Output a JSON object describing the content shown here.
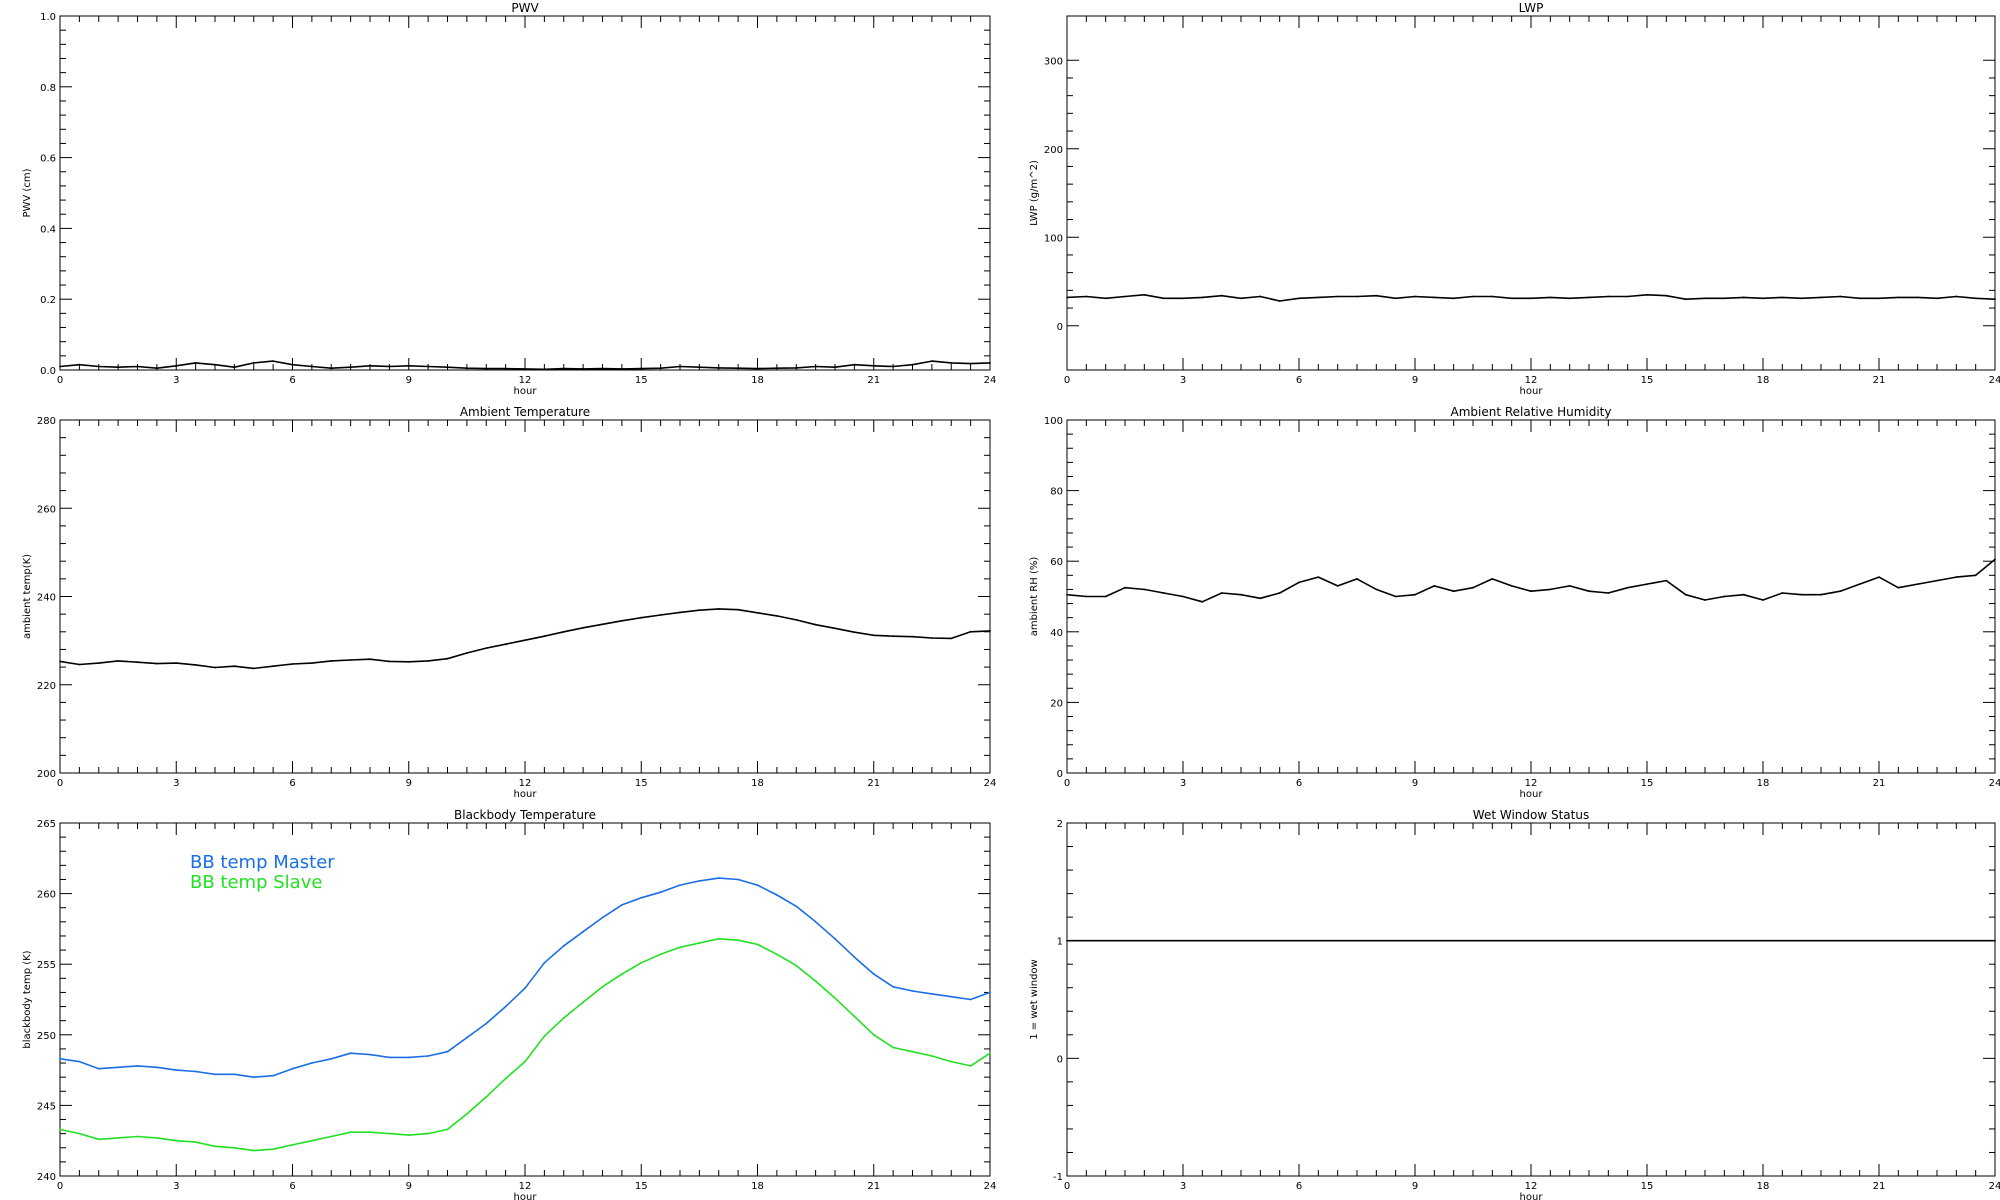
{
  "chart_data": [
    {
      "type": "line",
      "title": "PWV",
      "xlabel": "hour",
      "ylabel": "PWV (cm)",
      "xlim": [
        0,
        24
      ],
      "ylim": [
        0,
        1
      ],
      "xticks": [
        "0",
        "3",
        "6",
        "9",
        "12",
        "15",
        "18",
        "21",
        "24"
      ],
      "yticks": [
        "0.0",
        "0.2",
        "0.4",
        "0.6",
        "0.8",
        "1.0"
      ],
      "grid": false,
      "series": [
        {
          "color": "#000000",
          "x": [
            0,
            0.5,
            1,
            1.5,
            2,
            2.5,
            3,
            3.5,
            4,
            4.5,
            5,
            5.5,
            6,
            6.5,
            7,
            7.5,
            8,
            8.5,
            9,
            9.5,
            10,
            10.5,
            11,
            11.5,
            12,
            12.5,
            13,
            13.5,
            14,
            14.5,
            15,
            15.5,
            16,
            16.5,
            17,
            17.5,
            18,
            18.5,
            19,
            19.5,
            20,
            20.5,
            21,
            21.5,
            22,
            22.5,
            23,
            23.5,
            24
          ],
          "y": [
            0.01,
            0.015,
            0.01,
            0.008,
            0.01,
            0.005,
            0.012,
            0.02,
            0.015,
            0.008,
            0.02,
            0.025,
            0.015,
            0.01,
            0.005,
            0.008,
            0.012,
            0.01,
            0.012,
            0.01,
            0.008,
            0.005,
            0.004,
            0.004,
            0.003,
            0.002,
            0.004,
            0.003,
            0.004,
            0.003,
            0.004,
            0.005,
            0.01,
            0.008,
            0.006,
            0.005,
            0.004,
            0.005,
            0.006,
            0.01,
            0.008,
            0.015,
            0.012,
            0.01,
            0.015,
            0.025,
            0.02,
            0.018,
            0.02
          ]
        }
      ]
    },
    {
      "type": "line",
      "title": "LWP",
      "xlabel": "hour",
      "ylabel": "LWP (g/m^2)",
      "xlim": [
        0,
        24
      ],
      "ylim": [
        -50,
        350
      ],
      "xticks": [
        "0",
        "3",
        "6",
        "9",
        "12",
        "15",
        "18",
        "21",
        "24"
      ],
      "yticks": [
        "0",
        "100",
        "200",
        "300"
      ],
      "grid": false,
      "series": [
        {
          "color": "#000000",
          "x": [
            0,
            0.5,
            1,
            1.5,
            2,
            2.5,
            3,
            3.5,
            4,
            4.5,
            5,
            5.5,
            6,
            6.5,
            7,
            7.5,
            8,
            8.5,
            9,
            9.5,
            10,
            10.5,
            11,
            11.5,
            12,
            12.5,
            13,
            13.5,
            14,
            14.5,
            15,
            15.5,
            16,
            16.5,
            17,
            17.5,
            18,
            18.5,
            19,
            19.5,
            20,
            20.5,
            21,
            21.5,
            22,
            22.5,
            23,
            23.5,
            24
          ],
          "y": [
            32,
            33,
            31,
            33,
            35,
            31,
            31,
            32,
            34,
            31,
            33,
            28,
            31,
            32,
            33,
            33,
            34,
            31,
            33,
            32,
            31,
            33,
            33,
            31,
            31,
            32,
            31,
            32,
            33,
            33,
            35,
            34,
            30,
            31,
            31,
            32,
            31,
            32,
            31,
            32,
            33,
            31,
            31,
            32,
            32,
            31,
            33,
            31,
            30
          ]
        }
      ]
    },
    {
      "type": "line",
      "title": "Ambient Temperature",
      "xlabel": "hour",
      "ylabel": "ambient temp(K)",
      "xlim": [
        0,
        24
      ],
      "ylim": [
        200,
        280
      ],
      "xticks": [
        "0",
        "3",
        "6",
        "9",
        "12",
        "15",
        "18",
        "21",
        "24"
      ],
      "yticks": [
        "200",
        "220",
        "240",
        "260",
        "280"
      ],
      "grid": false,
      "series": [
        {
          "color": "#000000",
          "x": [
            0,
            0.5,
            1,
            1.5,
            2,
            2.5,
            3,
            3.5,
            4,
            4.5,
            5,
            5.5,
            6,
            6.5,
            7,
            7.5,
            8,
            8.5,
            9,
            9.5,
            10,
            10.5,
            11,
            11.5,
            12,
            12.5,
            13,
            13.5,
            14,
            14.5,
            15,
            15.5,
            16,
            16.5,
            17,
            17.5,
            18,
            18.5,
            19,
            19.5,
            20,
            20.5,
            21,
            21.5,
            22,
            22.5,
            23,
            23.5,
            24
          ],
          "y": [
            225.3,
            224.6,
            224.9,
            225.4,
            225.1,
            224.8,
            224.9,
            224.5,
            223.9,
            224.2,
            223.7,
            224.2,
            224.7,
            224.9,
            225.4,
            225.6,
            225.8,
            225.3,
            225.2,
            225.4,
            225.9,
            227.2,
            228.3,
            229.2,
            230.1,
            231.0,
            232.0,
            232.9,
            233.7,
            234.5,
            235.2,
            235.8,
            236.4,
            236.9,
            237.2,
            237.0,
            236.3,
            235.6,
            234.7,
            233.6,
            232.8,
            231.9,
            231.2,
            231.0,
            230.9,
            230.6,
            230.5,
            232.0,
            232.2
          ]
        }
      ]
    },
    {
      "type": "line",
      "title": "Ambient Relative Humidity",
      "xlabel": "hour",
      "ylabel": "ambient RH (%)",
      "xlim": [
        0,
        24
      ],
      "ylim": [
        0,
        100
      ],
      "xticks": [
        "0",
        "3",
        "6",
        "9",
        "12",
        "15",
        "18",
        "21",
        "24"
      ],
      "yticks": [
        "0",
        "20",
        "40",
        "60",
        "80",
        "100"
      ],
      "grid": false,
      "series": [
        {
          "color": "#000000",
          "x": [
            0,
            0.5,
            1,
            1.5,
            2,
            2.5,
            3,
            3.5,
            4,
            4.5,
            5,
            5.5,
            6,
            6.5,
            7,
            7.5,
            8,
            8.5,
            9,
            9.5,
            10,
            10.5,
            11,
            11.5,
            12,
            12.5,
            13,
            13.5,
            14,
            14.5,
            15,
            15.5,
            16,
            16.5,
            17,
            17.5,
            18,
            18.5,
            19,
            19.5,
            20,
            20.5,
            21,
            21.5,
            22,
            22.5,
            23,
            23.5,
            24
          ],
          "y": [
            50.5,
            50,
            50,
            52.5,
            52,
            51,
            50,
            48.5,
            51,
            50.5,
            49.5,
            51,
            54,
            55.5,
            53,
            55,
            52,
            50,
            50.5,
            53,
            51.5,
            52.5,
            55,
            53,
            51.5,
            52,
            53,
            51.5,
            51,
            52.5,
            53.5,
            54.5,
            50.5,
            49,
            50,
            50.5,
            49,
            51,
            50.5,
            50.5,
            51.5,
            53.5,
            55.5,
            52.5,
            53.5,
            54.5,
            55.5,
            56,
            60.5
          ]
        }
      ]
    },
    {
      "type": "line",
      "title": "Blackbody Temperature",
      "xlabel": "hour",
      "ylabel": "blackbody temp (K)",
      "xlim": [
        0,
        24
      ],
      "ylim": [
        240,
        265
      ],
      "xticks": [
        "0",
        "3",
        "6",
        "9",
        "12",
        "15",
        "18",
        "21",
        "24"
      ],
      "yticks": [
        "240",
        "245",
        "250",
        "255",
        "260",
        "265"
      ],
      "grid": false,
      "legend": "top-left",
      "series": [
        {
          "name": "BB temp Master",
          "color": "#1a6ee6",
          "x": [
            0,
            0.5,
            1,
            1.5,
            2,
            2.5,
            3,
            3.5,
            4,
            4.5,
            5,
            5.5,
            6,
            6.5,
            7,
            7.5,
            8,
            8.5,
            9,
            9.5,
            10,
            10.5,
            11,
            11.5,
            12,
            12.5,
            13,
            13.5,
            14,
            14.5,
            15,
            15.5,
            16,
            16.5,
            17,
            17.5,
            18,
            18.5,
            19,
            19.5,
            20,
            20.5,
            21,
            21.5,
            22,
            22.5,
            23,
            23.5,
            24
          ],
          "y": [
            248.3,
            248.1,
            247.6,
            247.7,
            247.8,
            247.7,
            247.5,
            247.4,
            247.2,
            247.2,
            247.0,
            247.1,
            247.6,
            248.0,
            248.3,
            248.7,
            248.6,
            248.4,
            248.4,
            248.5,
            248.8,
            249.8,
            250.8,
            252.0,
            253.3,
            255.1,
            256.3,
            257.3,
            258.3,
            259.2,
            259.7,
            260.1,
            260.6,
            260.9,
            261.1,
            261.0,
            260.6,
            259.9,
            259.1,
            258.0,
            256.8,
            255.5,
            254.3,
            253.4,
            253.1,
            252.9,
            252.7,
            252.5,
            253.0
          ]
        },
        {
          "name": "BB temp Slave",
          "color": "#22e022",
          "x": [
            0,
            0.5,
            1,
            1.5,
            2,
            2.5,
            3,
            3.5,
            4,
            4.5,
            5,
            5.5,
            6,
            6.5,
            7,
            7.5,
            8,
            8.5,
            9,
            9.5,
            10,
            10.5,
            11,
            11.5,
            12,
            12.5,
            13,
            13.5,
            14,
            14.5,
            15,
            15.5,
            16,
            16.5,
            17,
            17.5,
            18,
            18.5,
            19,
            19.5,
            20,
            20.5,
            21,
            21.5,
            22,
            22.5,
            23,
            23.5,
            24
          ],
          "y": [
            243.3,
            243.0,
            242.6,
            242.7,
            242.8,
            242.7,
            242.5,
            242.4,
            242.1,
            242.0,
            241.8,
            241.9,
            242.2,
            242.5,
            242.8,
            243.1,
            243.1,
            243.0,
            242.9,
            243.0,
            243.3,
            244.4,
            245.6,
            246.9,
            248.1,
            249.9,
            251.2,
            252.3,
            253.4,
            254.3,
            255.1,
            255.7,
            256.2,
            256.5,
            256.8,
            256.7,
            256.4,
            255.7,
            254.9,
            253.8,
            252.6,
            251.3,
            250.0,
            249.1,
            248.8,
            248.5,
            248.1,
            247.8,
            248.7
          ]
        }
      ]
    },
    {
      "type": "line",
      "title": "Wet Window Status",
      "xlabel": "hour",
      "ylabel": "1 = wet window",
      "xlim": [
        0,
        24
      ],
      "ylim": [
        -1,
        2
      ],
      "xticks": [
        "0",
        "3",
        "6",
        "9",
        "12",
        "15",
        "18",
        "21",
        "24"
      ],
      "yticks": [
        "-1",
        "0",
        "1",
        "2"
      ],
      "grid": false,
      "series": [
        {
          "color": "#000000",
          "x": [
            0,
            24
          ],
          "y": [
            1,
            1
          ]
        }
      ]
    }
  ]
}
